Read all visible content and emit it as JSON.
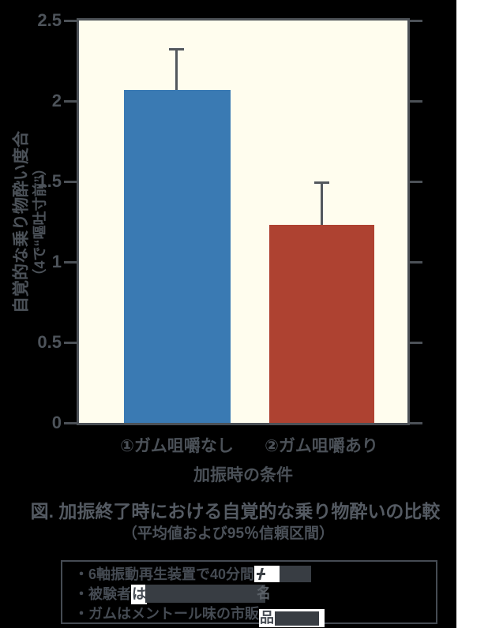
{
  "chart_data": {
    "type": "bar",
    "title": "図.  加振終了時における自覚的な乗り物酔いの比較",
    "subtitle": "（平均値および95％信頼区間）",
    "xlabel": "加振時の条件",
    "ylabel_line1": "自覚的な乗り物酔い度合",
    "ylabel_line2": "（4で“嘔吐寸前”）",
    "categories": [
      "①ガム咀嚼なし",
      "②ガム咀嚼あり"
    ],
    "values": [
      2.07,
      1.23
    ],
    "ci_upper": [
      2.33,
      1.5
    ],
    "bar_colors": [
      "#3a7ab3",
      "#ae4231"
    ],
    "ylim": [
      0,
      2.5
    ],
    "yticks": [
      0,
      0.5,
      1,
      1.5,
      2,
      2.5
    ],
    "ytick_labels": [
      "0",
      "0.5",
      "1",
      "1.5",
      "2",
      "2.5"
    ],
    "legend": "none",
    "grid": "off",
    "tick_sides": "left-and-right",
    "error_bars": "upper whisker with cap, 95% CI",
    "plot_bg": "#fffdee",
    "page_bg": "#000000",
    "axis_color": "#4c5157"
  },
  "caption": {
    "title": "図.  加振終了時における自覚的な乗り物酔いの比較",
    "subtitle": "（平均値および95％信頼区間）"
  },
  "notes": {
    "line1": {
      "prefix": "・6軸振動再生装置で40分間"
    },
    "line2": {
      "prefix": "・被験者",
      "visible_char": "は",
      "trailing_char": "名"
    },
    "line3": {
      "prefix": "・ガムはメントール味の市販",
      "visible_char": "品"
    }
  }
}
